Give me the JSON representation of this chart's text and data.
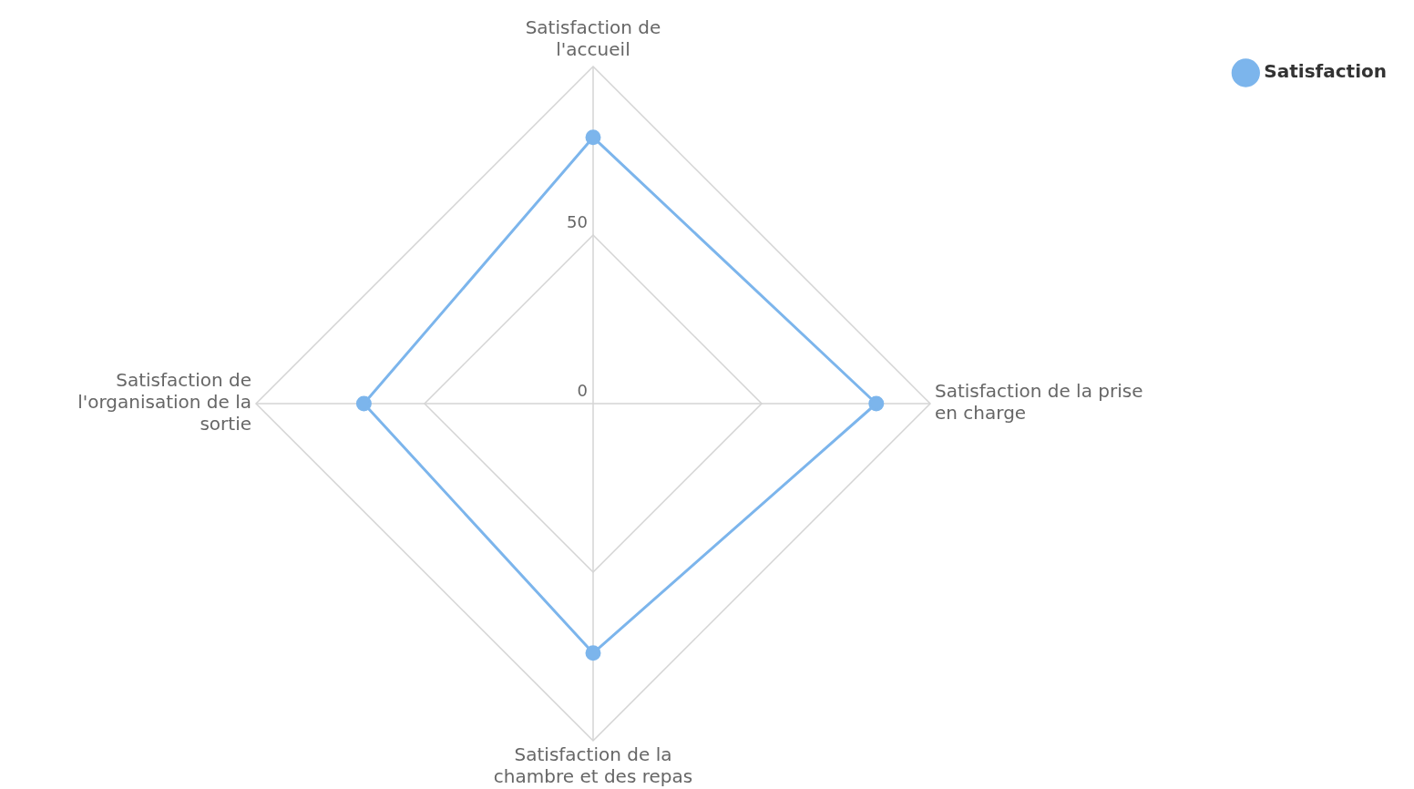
{
  "chart_data": {
    "type": "radar",
    "categories": [
      "Satisfaction de l'accueil",
      "Satisfaction de la prise en charge",
      "Satisfaction de la chambre et des repas",
      "Satisfaction de l'organisation de la sortie"
    ],
    "series": [
      {
        "name": "Satisfaction",
        "color": "#7cb5ec",
        "values": [
          79,
          84,
          74,
          68
        ]
      }
    ],
    "ylim": [
      0,
      100
    ],
    "yticks": [
      0,
      50
    ],
    "grid": true,
    "legend": "top right",
    "marker": "circle",
    "line_style": "solid"
  }
}
